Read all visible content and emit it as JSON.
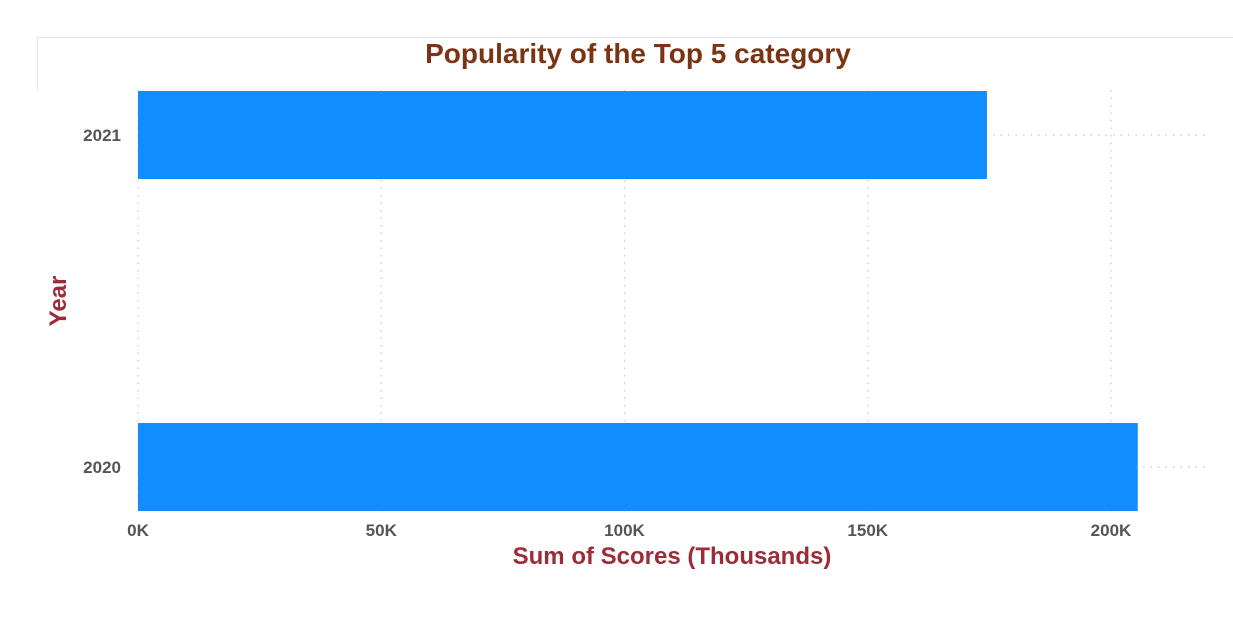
{
  "chart_data": {
    "type": "bar",
    "orientation": "horizontal",
    "title": "Popularity of the Top 5 category",
    "xlabel": "Sum of Scores (Thousands)",
    "ylabel": "Year",
    "categories": [
      "2021",
      "2020"
    ],
    "values": [
      174.5,
      205.5
    ],
    "xlim": [
      0,
      220
    ],
    "xticks": [
      0,
      50,
      100,
      150,
      200
    ],
    "xtick_labels": [
      "0K",
      "50K",
      "100K",
      "150K",
      "200K"
    ],
    "grid": true,
    "legend": "none",
    "colors": {
      "bar": "#118dff",
      "title": "#7a3414",
      "axis_title": "#9b2c39",
      "tick_label": "#555555",
      "gridline": "#c8c8c8"
    }
  }
}
